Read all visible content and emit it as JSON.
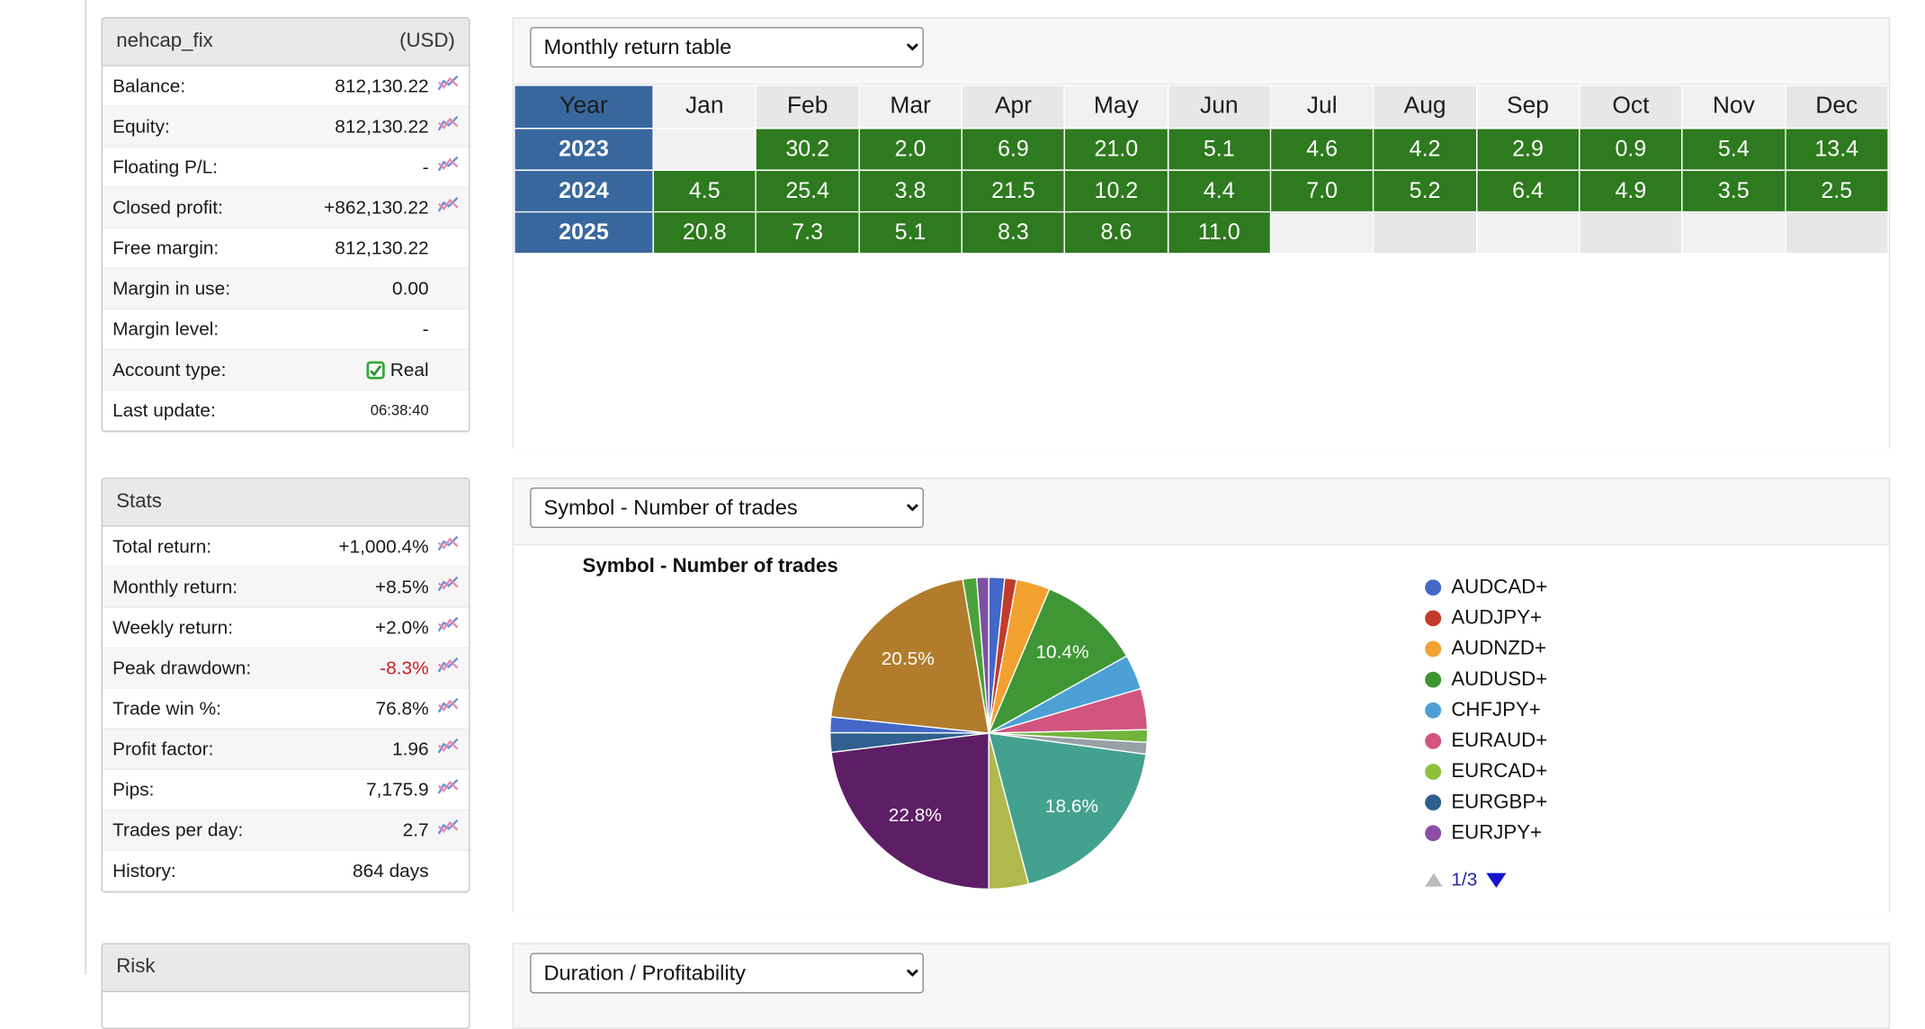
{
  "account_panel": {
    "title": "nehcap_fix",
    "currency": "(USD)",
    "rows": [
      {
        "label": "Balance:",
        "value": "812,130.22",
        "icon": true
      },
      {
        "label": "Equity:",
        "value": "812,130.22",
        "icon": true
      },
      {
        "label": "Floating P/L:",
        "value": "-",
        "icon": true
      },
      {
        "label": "Closed profit:",
        "value": "+862,130.22",
        "icon": true
      },
      {
        "label": "Free margin:",
        "value": "812,130.22",
        "icon": false
      },
      {
        "label": "Margin in use:",
        "value": "0.00",
        "icon": false
      },
      {
        "label": "Margin level:",
        "value": "-",
        "icon": false
      },
      {
        "label": "Account type:",
        "value": "Real",
        "icon": false,
        "check": true
      },
      {
        "label": "Last update:",
        "value": "06:38:40",
        "icon": false,
        "small": true
      }
    ]
  },
  "stats_panel": {
    "title": "Stats",
    "rows": [
      {
        "label": "Total return:",
        "value": "+1,000.4%",
        "icon": true
      },
      {
        "label": "Monthly return:",
        "value": "+8.5%",
        "icon": true
      },
      {
        "label": "Weekly return:",
        "value": "+2.0%",
        "icon": true
      },
      {
        "label": "Peak drawdown:",
        "value": "-8.3%",
        "icon": true,
        "negative": true
      },
      {
        "label": "Trade win %:",
        "value": "76.8%",
        "icon": true
      },
      {
        "label": "Profit factor:",
        "value": "1.96",
        "icon": true
      },
      {
        "label": "Pips:",
        "value": "7,175.9",
        "icon": true
      },
      {
        "label": "Trades per day:",
        "value": "2.7",
        "icon": true
      },
      {
        "label": "History:",
        "value": "864 days",
        "icon": false
      }
    ]
  },
  "risk_panel": {
    "title": "Risk"
  },
  "monthly_panel": {
    "dropdown": "Monthly return table"
  },
  "symbol_panel": {
    "dropdown": "Symbol - Number of trades",
    "title": "Symbol - Number of trades",
    "page": "1/3"
  },
  "duration_panel": {
    "dropdown": "Duration / Profitability"
  },
  "chart_data": [
    {
      "type": "table",
      "title": "Monthly return table",
      "columns": [
        "Year",
        "Jan",
        "Feb",
        "Mar",
        "Apr",
        "May",
        "Jun",
        "Jul",
        "Aug",
        "Sep",
        "Oct",
        "Nov",
        "Dec"
      ],
      "rows": [
        {
          "year": "2023",
          "values": [
            null,
            "30.2",
            "2.0",
            "6.9",
            "21.0",
            "5.1",
            "4.6",
            "4.2",
            "2.9",
            "0.9",
            "5.4",
            "13.4"
          ]
        },
        {
          "year": "2024",
          "values": [
            "4.5",
            "25.4",
            "3.8",
            "21.5",
            "10.2",
            "4.4",
            "7.0",
            "5.2",
            "6.4",
            "4.9",
            "3.5",
            "2.5"
          ]
        },
        {
          "year": "2025",
          "values": [
            "20.8",
            "7.3",
            "5.1",
            "8.3",
            "8.6",
            "11.0",
            null,
            null,
            null,
            null,
            null,
            null
          ]
        }
      ],
      "colors": {
        "filled_cell": "#2e7a1e",
        "year_cell": "#38679e"
      }
    },
    {
      "type": "pie",
      "title": "Symbol - Number of trades",
      "slices": [
        {
          "symbol": "AUDCAD+",
          "percent": 1.6,
          "color": "#4468c8",
          "label": ""
        },
        {
          "symbol": "AUDJPY+",
          "percent": 1.2,
          "color": "#c23b2a",
          "label": ""
        },
        {
          "symbol": "AUDNZD+",
          "percent": 3.4,
          "color": "#f3a12f",
          "label": ""
        },
        {
          "symbol": "AUDUSD+",
          "percent": 10.4,
          "color": "#3f9634",
          "label": "10.4%"
        },
        {
          "symbol": "CHFJPY+",
          "percent": 3.6,
          "color": "#4da0d6",
          "label": ""
        },
        {
          "symbol": "EURAUD+",
          "percent": 4.2,
          "color": "#d2557f",
          "label": ""
        },
        {
          "symbol": "",
          "percent": 1.3,
          "color": "#72b43c",
          "label": ""
        },
        {
          "symbol": "",
          "percent": 1.2,
          "color": "#98a0a6",
          "label": ""
        },
        {
          "symbol": "",
          "percent": 18.6,
          "color": "#43a18f",
          "label": "18.6%"
        },
        {
          "symbol": "EURCAD+",
          "percent": 4.0,
          "color": "#b0b94b",
          "label": ""
        },
        {
          "symbol": "EURJPY+",
          "percent": 22.8,
          "color": "#5e1e66",
          "label": "22.8%"
        },
        {
          "symbol": "EURGBP+",
          "percent": 2.0,
          "color": "#2f608f",
          "label": ""
        },
        {
          "symbol": "",
          "percent": 1.6,
          "color": "#4468c8",
          "label": ""
        },
        {
          "symbol": "",
          "percent": 20.5,
          "color": "#b17c2b",
          "label": "20.5%"
        },
        {
          "symbol": "",
          "percent": 1.4,
          "color": "#4ba23a",
          "label": ""
        },
        {
          "symbol": "",
          "percent": 1.2,
          "color": "#7c50a2",
          "label": ""
        }
      ],
      "legend": [
        {
          "label": "AUDCAD+",
          "color": "#4468c8"
        },
        {
          "label": "AUDJPY+",
          "color": "#c23b2a"
        },
        {
          "label": "AUDNZD+",
          "color": "#f3a12f"
        },
        {
          "label": "AUDUSD+",
          "color": "#3f9634"
        },
        {
          "label": "CHFJPY+",
          "color": "#4da0d6"
        },
        {
          "label": "EURAUD+",
          "color": "#d2557f"
        },
        {
          "label": "EURCAD+",
          "color": "#8fbf3d"
        },
        {
          "label": "EURGBP+",
          "color": "#2f608f"
        },
        {
          "label": "EURJPY+",
          "color": "#8a4fa5"
        }
      ],
      "legend_position": "right",
      "pagination": "1/3"
    }
  ]
}
